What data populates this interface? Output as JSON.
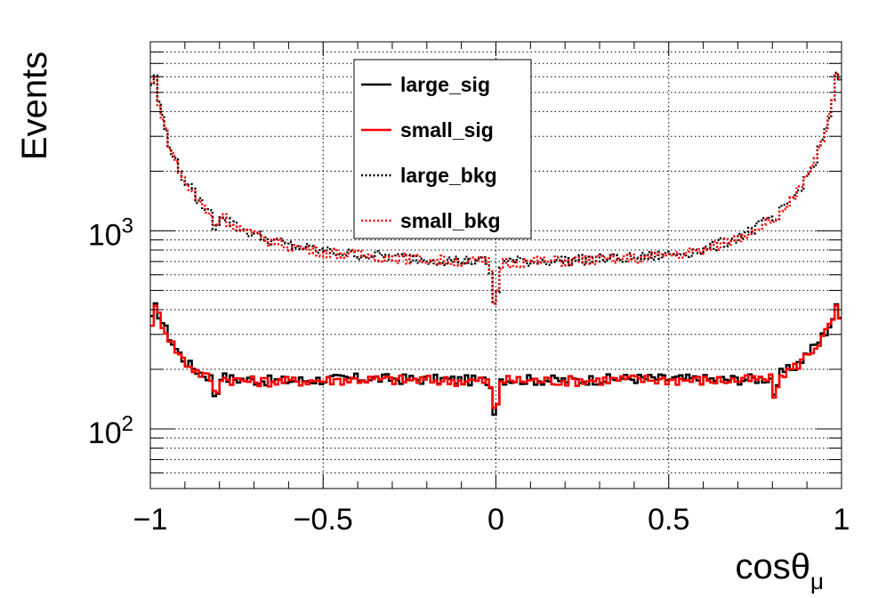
{
  "chart_data": {
    "type": "line",
    "histogram": true,
    "title": "",
    "xlabel": "cosθ_μ",
    "xlabel_main": "cosθ",
    "xlabel_sub": "μ",
    "ylabel": "Events",
    "xlim": [
      -1,
      1
    ],
    "ylim": [
      50,
      9000
    ],
    "yscale": "log",
    "grid": true,
    "legend_position": "top-center",
    "x_ticks": [
      -1,
      -0.5,
      0,
      0.5,
      1
    ],
    "x_tick_labels": [
      "−1",
      "−0.5",
      "0",
      "0.5",
      "1"
    ],
    "y_ticks": [
      100,
      1000
    ],
    "y_tick_labels": [
      {
        "base": "10",
        "exp": "2"
      },
      {
        "base": "10",
        "exp": "3"
      }
    ],
    "bins": 200,
    "series": [
      {
        "name": "large_sig",
        "color": "#000000",
        "style": "solid",
        "profile": {
          "x": [
            -1.0,
            -0.99,
            -0.98,
            -0.96,
            -0.93,
            -0.9,
            -0.87,
            -0.85,
            -0.82,
            -0.81,
            -0.8,
            -0.78,
            -0.74,
            -0.7,
            -0.6,
            -0.4,
            -0.2,
            -0.02,
            -0.01,
            0.0,
            0.01,
            0.02,
            0.2,
            0.4,
            0.6,
            0.7,
            0.78,
            0.8,
            0.81,
            0.82,
            0.85,
            0.87,
            0.9,
            0.93,
            0.96,
            0.98,
            0.99,
            1.0
          ],
          "y": [
            300,
            420,
            400,
            330,
            260,
            220,
            200,
            190,
            180,
            125,
            190,
            180,
            178,
            176,
            175,
            180,
            178,
            175,
            150,
            105,
            180,
            178,
            176,
            180,
            178,
            178,
            180,
            180,
            130,
            190,
            200,
            210,
            240,
            270,
            320,
            380,
            440,
            300
          ]
        }
      },
      {
        "name": "small_sig",
        "color": "#ff0000",
        "style": "solid",
        "profile": {
          "x": [
            -1.0,
            -0.99,
            -0.98,
            -0.96,
            -0.93,
            -0.9,
            -0.87,
            -0.85,
            -0.82,
            -0.81,
            -0.8,
            -0.78,
            -0.74,
            -0.7,
            -0.6,
            -0.4,
            -0.2,
            -0.02,
            -0.01,
            0.0,
            0.01,
            0.02,
            0.2,
            0.4,
            0.6,
            0.7,
            0.78,
            0.8,
            0.81,
            0.82,
            0.85,
            0.87,
            0.9,
            0.93,
            0.96,
            0.98,
            0.99,
            1.0
          ],
          "y": [
            295,
            410,
            395,
            325,
            258,
            218,
            198,
            188,
            178,
            130,
            186,
            178,
            176,
            174,
            174,
            178,
            176,
            174,
            148,
            104,
            178,
            176,
            175,
            178,
            176,
            176,
            178,
            178,
            128,
            186,
            198,
            208,
            236,
            266,
            315,
            375,
            430,
            295
          ]
        }
      },
      {
        "name": "large_bkg",
        "color": "#000000",
        "style": "dotted",
        "profile": {
          "x": [
            -1.0,
            -0.99,
            -0.98,
            -0.96,
            -0.94,
            -0.92,
            -0.9,
            -0.87,
            -0.84,
            -0.82,
            -0.81,
            -0.8,
            -0.78,
            -0.75,
            -0.7,
            -0.65,
            -0.6,
            -0.5,
            -0.4,
            -0.2,
            -0.02,
            -0.01,
            0.0,
            0.01,
            0.02,
            0.2,
            0.4,
            0.5,
            0.6,
            0.65,
            0.7,
            0.75,
            0.78,
            0.8,
            0.81,
            0.82,
            0.84,
            0.87,
            0.9,
            0.92,
            0.94,
            0.96,
            0.98,
            0.99,
            1.0
          ],
          "y": [
            4400,
            7000,
            5000,
            3400,
            2600,
            2100,
            1800,
            1500,
            1300,
            1200,
            950,
            1250,
            1150,
            1050,
            960,
            900,
            850,
            790,
            760,
            720,
            700,
            500,
            370,
            650,
            700,
            710,
            730,
            760,
            800,
            860,
            930,
            1030,
            1120,
            1200,
            950,
            1250,
            1350,
            1550,
            1850,
            2150,
            2700,
            3500,
            5000,
            7200,
            4500
          ]
        }
      },
      {
        "name": "small_bkg",
        "color": "#ff0000",
        "style": "dotted",
        "profile": {
          "x": [
            -1.0,
            -0.99,
            -0.98,
            -0.96,
            -0.94,
            -0.92,
            -0.9,
            -0.87,
            -0.84,
            -0.82,
            -0.81,
            -0.8,
            -0.78,
            -0.75,
            -0.7,
            -0.65,
            -0.6,
            -0.5,
            -0.4,
            -0.2,
            -0.02,
            -0.01,
            0.0,
            0.01,
            0.02,
            0.2,
            0.4,
            0.5,
            0.6,
            0.65,
            0.7,
            0.75,
            0.78,
            0.8,
            0.81,
            0.82,
            0.84,
            0.87,
            0.9,
            0.92,
            0.94,
            0.96,
            0.98,
            0.99,
            1.0
          ],
          "y": [
            4350,
            6900,
            4950,
            3350,
            2580,
            2080,
            1790,
            1490,
            1290,
            1190,
            960,
            1240,
            1140,
            1040,
            950,
            890,
            845,
            785,
            755,
            715,
            695,
            510,
            380,
            645,
            695,
            705,
            725,
            755,
            795,
            855,
            925,
            1025,
            1110,
            1190,
            960,
            1240,
            1340,
            1540,
            1840,
            2140,
            2680,
            3480,
            4950,
            7100,
            4450
          ]
        }
      }
    ]
  }
}
